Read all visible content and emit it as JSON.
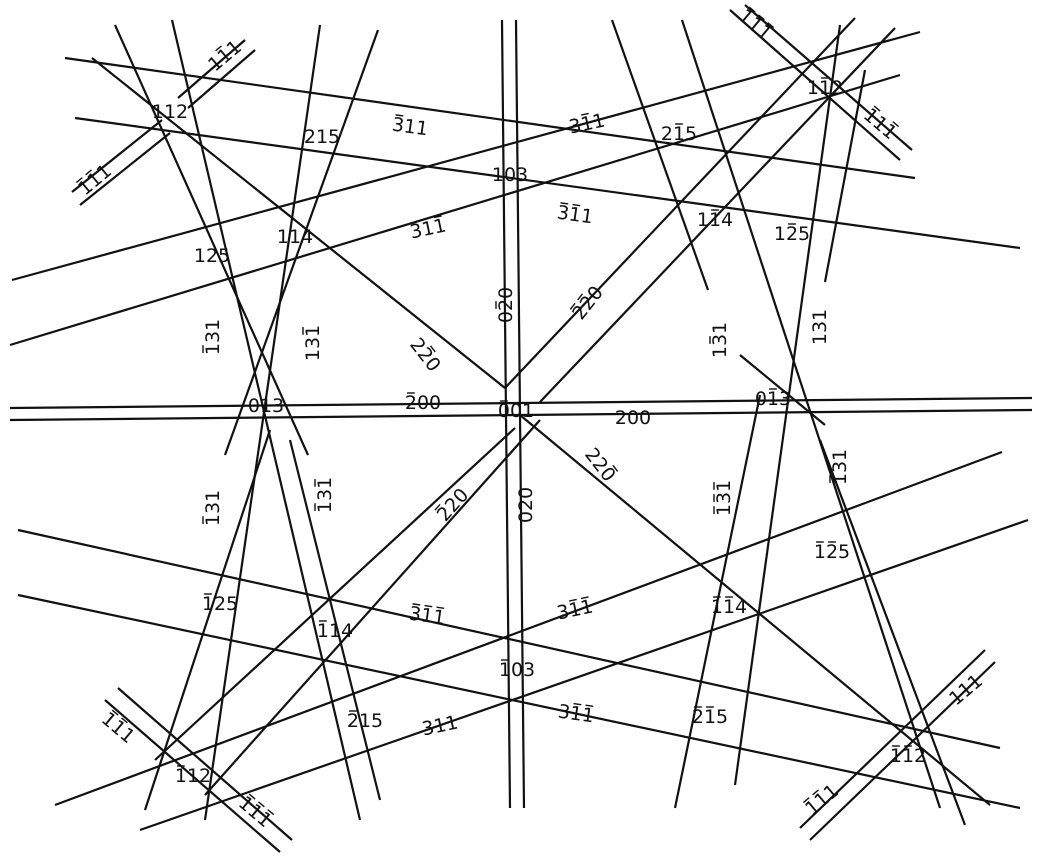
{
  "diagram": {
    "line_color": "#111111",
    "background": "#ffffff",
    "poles": [
      {
        "key": "p001",
        "index": "001",
        "bars": [
          0
        ]
      },
      {
        "key": "p112_tl",
        "index": "112",
        "bars": []
      },
      {
        "key": "p215",
        "index": "215",
        "bars": []
      },
      {
        "key": "p103",
        "index": "103",
        "bars": []
      },
      {
        "key": "p215b",
        "index": "215",
        "bars": [
          1
        ]
      },
      {
        "key": "p112_tr",
        "index": "112",
        "bars": [
          1
        ]
      },
      {
        "key": "p114",
        "index": "114",
        "bars": []
      },
      {
        "key": "p125",
        "index": "125",
        "bars": []
      },
      {
        "key": "p114b",
        "index": "114",
        "bars": [
          1
        ]
      },
      {
        "key": "p125b",
        "index": "125",
        "bars": [
          1
        ]
      },
      {
        "key": "p013",
        "index": "013",
        "bars": []
      },
      {
        "key": "p013b",
        "index": "013",
        "bars": [
          1
        ]
      },
      {
        "key": "p125c",
        "index": "125",
        "bars": [
          0
        ]
      },
      {
        "key": "p114c",
        "index": "114",
        "bars": [
          0
        ]
      },
      {
        "key": "p103b",
        "index": "103",
        "bars": [
          0
        ]
      },
      {
        "key": "p215c",
        "index": "215",
        "bars": [
          0
        ]
      },
      {
        "key": "p112_bl",
        "index": "112",
        "bars": [
          0
        ]
      },
      {
        "key": "p125d",
        "index": "125",
        "bars": [
          0,
          1
        ]
      },
      {
        "key": "p114d",
        "index": "114",
        "bars": [
          0,
          1
        ]
      },
      {
        "key": "p215d",
        "index": "215",
        "bars": [
          0,
          1
        ]
      },
      {
        "key": "p112_br",
        "index": "112",
        "bars": [
          0,
          1
        ]
      }
    ],
    "bands": [
      {
        "key": "b311_a",
        "index": "311",
        "bars": [
          0
        ]
      },
      {
        "key": "b311_b",
        "index": "311",
        "bars": [
          1
        ]
      },
      {
        "key": "b311_c",
        "index": "311",
        "bars": [
          0,
          1
        ]
      },
      {
        "key": "b311_d",
        "index": "311",
        "bars": [
          2
        ]
      },
      {
        "key": "b311_e",
        "index": "311",
        "bars": [
          0,
          1,
          2
        ]
      },
      {
        "key": "b311_f",
        "index": "311",
        "bars": [
          1,
          2
        ]
      },
      {
        "key": "b311_g",
        "index": "311",
        "bars": [
          1,
          2
        ]
      },
      {
        "key": "b311_h",
        "index": "311",
        "bars": []
      },
      {
        "key": "b111_a",
        "index": "111",
        "bars": [
          1
        ]
      },
      {
        "key": "b111_b",
        "index": "111",
        "bars": [
          0,
          1
        ]
      },
      {
        "key": "b111_c",
        "index": "111",
        "bars": [
          0,
          1,
          2
        ]
      },
      {
        "key": "b111_d",
        "index": "111",
        "bars": [
          0,
          2
        ]
      },
      {
        "key": "b111_e",
        "index": "111",
        "bars": [
          0,
          1
        ]
      },
      {
        "key": "b111_f",
        "index": "111",
        "bars": [
          0,
          1,
          2
        ]
      },
      {
        "key": "b111_g",
        "index": "111",
        "bars": []
      },
      {
        "key": "b111_h",
        "index": "111",
        "bars": [
          0,
          1
        ]
      },
      {
        "key": "b020_a",
        "index": "020",
        "bars": [
          1
        ]
      },
      {
        "key": "b020_b",
        "index": "020",
        "bars": []
      },
      {
        "key": "b200_a",
        "index": "200",
        "bars": [
          0
        ]
      },
      {
        "key": "b200_b",
        "index": "200",
        "bars": []
      },
      {
        "key": "b220_a",
        "index": "220",
        "bars": [
          0,
          1
        ]
      },
      {
        "key": "b220_b",
        "index": "220",
        "bars": [
          1
        ]
      },
      {
        "key": "b220_c",
        "index": "220",
        "bars": [
          2
        ]
      },
      {
        "key": "b220_d",
        "index": "220",
        "bars": [
          0
        ]
      },
      {
        "key": "b131_a",
        "index": "131",
        "bars": [
          0
        ]
      },
      {
        "key": "b131_b",
        "index": "131",
        "bars": [
          2
        ]
      },
      {
        "key": "b131_c",
        "index": "131",
        "bars": [
          1
        ]
      },
      {
        "key": "b131_d",
        "index": "131",
        "bars": []
      },
      {
        "key": "b131_e",
        "index": "131",
        "bars": [
          0
        ]
      },
      {
        "key": "b131_f",
        "index": "131",
        "bars": [
          0,
          2
        ]
      },
      {
        "key": "b131_g",
        "index": "131",
        "bars": [
          0,
          1,
          2
        ]
      },
      {
        "key": "b131_h",
        "index": "131",
        "bars": [
          0
        ]
      }
    ]
  }
}
